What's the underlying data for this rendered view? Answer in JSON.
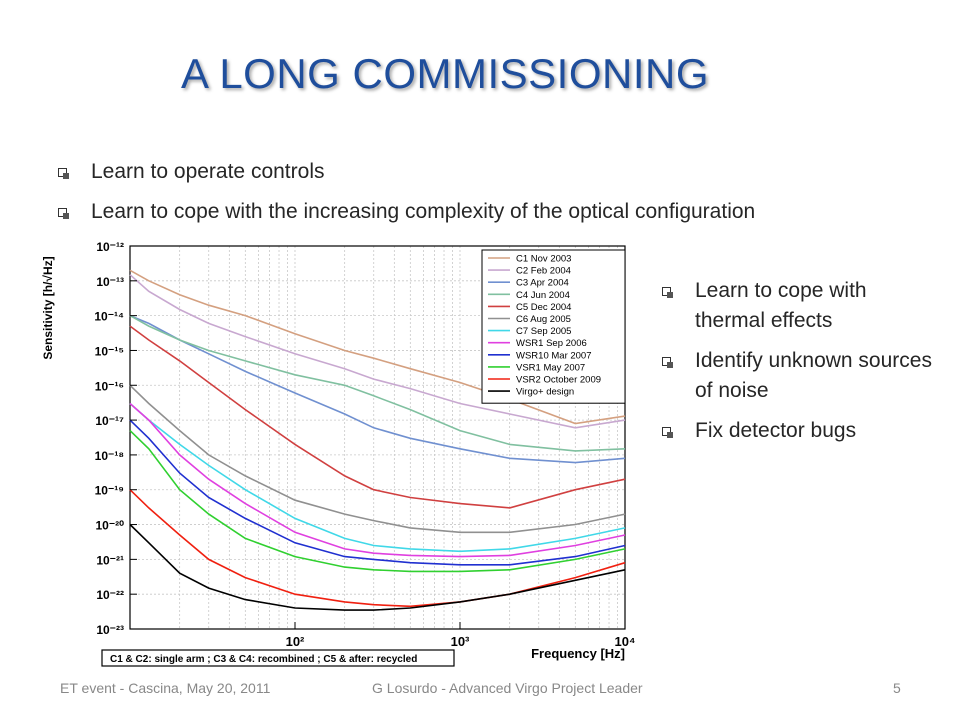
{
  "slide": {
    "title": "A LONG COMMISSIONING",
    "bullets_top": [
      "Learn to operate controls",
      "Learn to cope with the increasing complexity of the optical configuration"
    ],
    "bullets_right": [
      "Learn to cope with thermal effects",
      "Identify unknown sources of noise",
      "Fix detector bugs"
    ],
    "footer": {
      "left": "ET event - Cascina, May 20, 2011",
      "center": "G Losurdo - Advanced Virgo Project Leader",
      "right": "5"
    }
  },
  "chart_data": {
    "type": "line",
    "title": "",
    "xlabel": "Frequency [Hz]",
    "ylabel": "Sensitivity [h/√Hz]",
    "xscale": "log",
    "yscale": "log",
    "xlim": [
      10,
      10000
    ],
    "ylim": [
      1e-23,
      1e-12
    ],
    "x_ticks": [
      "10²",
      "10³",
      "10⁴"
    ],
    "y_ticks": [
      "10⁻¹²",
      "10⁻¹³",
      "10⁻¹⁴",
      "10⁻¹⁵",
      "10⁻¹⁶",
      "10⁻¹⁷",
      "10⁻¹⁸",
      "10⁻¹⁹",
      "10⁻²⁰",
      "10⁻²¹",
      "10⁻²²",
      "10⁻²³"
    ],
    "grid": true,
    "legend_position": "top-right",
    "annotation": "C1 & C2: single arm ; C3 & C4: recombined ; C5 & after: recycled",
    "x": [
      10,
      13,
      20,
      30,
      50,
      100,
      200,
      300,
      500,
      1000,
      2000,
      5000,
      10000
    ],
    "series": [
      {
        "name": "C1 Nov 2003",
        "color": "#d4a080",
        "values": [
          2e-13,
          1e-13,
          4e-14,
          2e-14,
          1e-14,
          3e-15,
          1e-15,
          6e-16,
          3e-16,
          1.2e-16,
          4e-17,
          8e-18,
          1.3e-17
        ]
      },
      {
        "name": "C2 Feb 2004",
        "color": "#c8a8d0",
        "values": [
          1.5e-13,
          5e-14,
          1.5e-14,
          6e-15,
          2.5e-15,
          8e-16,
          3e-16,
          1.5e-16,
          8e-17,
          3e-17,
          1.5e-17,
          6e-18,
          1e-17
        ]
      },
      {
        "name": "C3 Apr 2004",
        "color": "#7090d0",
        "values": [
          1e-14,
          6e-15,
          2e-15,
          8e-16,
          2.5e-16,
          6e-17,
          1.5e-17,
          6e-18,
          3e-18,
          1.5e-18,
          8e-19,
          6e-19,
          8e-19
        ]
      },
      {
        "name": "C4 Jun 2004",
        "color": "#80c0a0",
        "values": [
          1e-14,
          5e-15,
          2e-15,
          1e-15,
          5e-16,
          2e-16,
          1e-16,
          5e-17,
          2e-17,
          5e-18,
          2e-18,
          1.3e-18,
          1.5e-18
        ]
      },
      {
        "name": "C5 Dec 2004",
        "color": "#d04040",
        "values": [
          5e-15,
          2e-15,
          5e-16,
          1.2e-16,
          2e-17,
          2e-18,
          2.5e-19,
          1e-19,
          6e-20,
          4e-20,
          3e-20,
          1e-19,
          2e-19
        ]
      },
      {
        "name": "C6 Aug 2005",
        "color": "#909090",
        "values": [
          1e-16,
          3e-17,
          5e-18,
          1e-18,
          2.5e-19,
          5e-20,
          2e-20,
          1.3e-20,
          8e-21,
          6e-21,
          6e-21,
          1e-20,
          2e-20
        ]
      },
      {
        "name": "C7 Sep 2005",
        "color": "#40d8e8",
        "values": [
          3e-17,
          1e-17,
          2e-18,
          5e-19,
          1e-19,
          1.5e-20,
          4e-21,
          2.5e-21,
          2e-21,
          1.7e-21,
          2e-21,
          4e-21,
          8e-21
        ]
      },
      {
        "name": "WSR1 Sep 2006",
        "color": "#e040e0",
        "values": [
          3e-17,
          1e-17,
          1e-18,
          2e-19,
          4e-20,
          6e-21,
          2e-21,
          1.5e-21,
          1.3e-21,
          1.2e-21,
          1.3e-21,
          2.5e-21,
          5e-21
        ]
      },
      {
        "name": "WSR10 Mar 2007",
        "color": "#2030d0",
        "values": [
          1e-17,
          3e-18,
          3e-19,
          6e-20,
          1.5e-20,
          3e-21,
          1.2e-21,
          1e-21,
          8e-22,
          7e-22,
          7e-22,
          1.2e-21,
          2.5e-21
        ]
      },
      {
        "name": "VSR1 May 2007",
        "color": "#30d030",
        "values": [
          5e-18,
          1.5e-18,
          1e-19,
          2e-20,
          4e-21,
          1.2e-21,
          6e-22,
          5e-22,
          4.5e-22,
          4.5e-22,
          5e-22,
          1e-21,
          2e-21
        ]
      },
      {
        "name": "VSR2 October 2009",
        "color": "#f02010",
        "values": [
          1e-19,
          3e-20,
          5e-21,
          1e-21,
          3e-22,
          1e-22,
          6e-23,
          5e-23,
          4.5e-23,
          6e-23,
          1e-22,
          3e-22,
          8e-22
        ]
      },
      {
        "name": "Virgo+ design",
        "color": "#000000",
        "values": [
          1e-20,
          3e-21,
          4e-22,
          1.5e-22,
          7e-23,
          4e-23,
          3.5e-23,
          3.5e-23,
          4e-23,
          6e-23,
          1e-22,
          2.5e-22,
          5e-22
        ]
      }
    ]
  }
}
